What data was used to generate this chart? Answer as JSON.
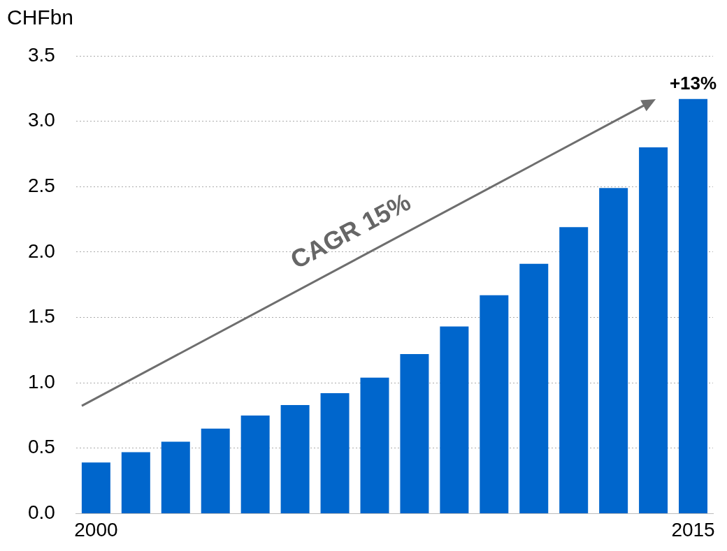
{
  "chart_data": {
    "type": "bar",
    "ylabel": "CHFbn",
    "categories": [
      "2000",
      null,
      null,
      null,
      null,
      null,
      null,
      null,
      null,
      null,
      null,
      null,
      null,
      null,
      null,
      "2015"
    ],
    "values": [
      0.39,
      0.47,
      0.55,
      0.65,
      0.75,
      0.83,
      0.92,
      1.04,
      1.22,
      1.43,
      1.67,
      1.91,
      2.19,
      2.49,
      2.8,
      3.17
    ],
    "color": "#0066cc",
    "ylim": [
      0,
      3.5
    ],
    "yticks": [
      {
        "value": 0,
        "label": "0.0"
      },
      {
        "value": 0.5,
        "label": "0.5"
      },
      {
        "value": 1,
        "label": "1.0"
      },
      {
        "value": 1.5,
        "label": "1.5"
      },
      {
        "value": 2,
        "label": "2.0"
      },
      {
        "value": 2.5,
        "label": "2.5"
      },
      {
        "value": 3,
        "label": "3.0"
      },
      {
        "value": 3.5,
        "label": "3.5"
      }
    ],
    "grid": "y",
    "legend": false,
    "annotations": [
      "CAGR 15%",
      {
        "text": "+13%",
        "x": "2015",
        "y": 3.17
      }
    ]
  }
}
